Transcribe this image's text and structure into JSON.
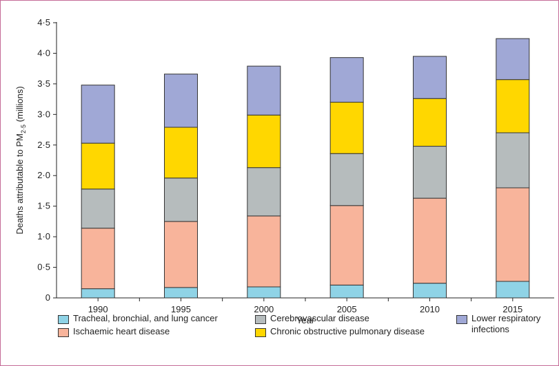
{
  "chart_data": {
    "type": "bar",
    "stacked": true,
    "xlabel": "Year",
    "ylabel_parts": {
      "main": "Deaths attributable to PM",
      "sub": "2·5",
      "unit": " (millions)"
    },
    "categories": [
      "1990",
      "1995",
      "2000",
      "2005",
      "2010",
      "2015"
    ],
    "ylim": [
      0,
      4.5
    ],
    "yticks": [
      0,
      0.5,
      1.0,
      1.5,
      2.0,
      2.5,
      3.0,
      3.5,
      4.0,
      4.5
    ],
    "ytick_labels": [
      "0",
      "0·5",
      "1·0",
      "1·5",
      "2·0",
      "2·5",
      "3·0",
      "3·5",
      "4·0",
      "4·5"
    ],
    "grid": false,
    "series": [
      {
        "name": "Tracheal, bronchial, and lung cancer",
        "color": "#8fd3e6",
        "values": [
          0.15,
          0.17,
          0.18,
          0.21,
          0.24,
          0.27
        ]
      },
      {
        "name": "Ischaemic heart disease",
        "color": "#f8b49b",
        "values": [
          0.99,
          1.08,
          1.16,
          1.3,
          1.39,
          1.53
        ]
      },
      {
        "name": "Cerebrovascular disease",
        "color": "#b6bcbd",
        "values": [
          0.64,
          0.71,
          0.79,
          0.85,
          0.85,
          0.9
        ]
      },
      {
        "name": "Chronic obstructive pulmonary disease",
        "color": "#ffd700",
        "values": [
          0.75,
          0.83,
          0.86,
          0.84,
          0.78,
          0.87
        ]
      },
      {
        "name": "Lower respiratory infections",
        "color": "#a0a8d6",
        "values": [
          0.95,
          0.87,
          0.8,
          0.73,
          0.69,
          0.67
        ]
      }
    ],
    "legend_position": "bottom"
  }
}
